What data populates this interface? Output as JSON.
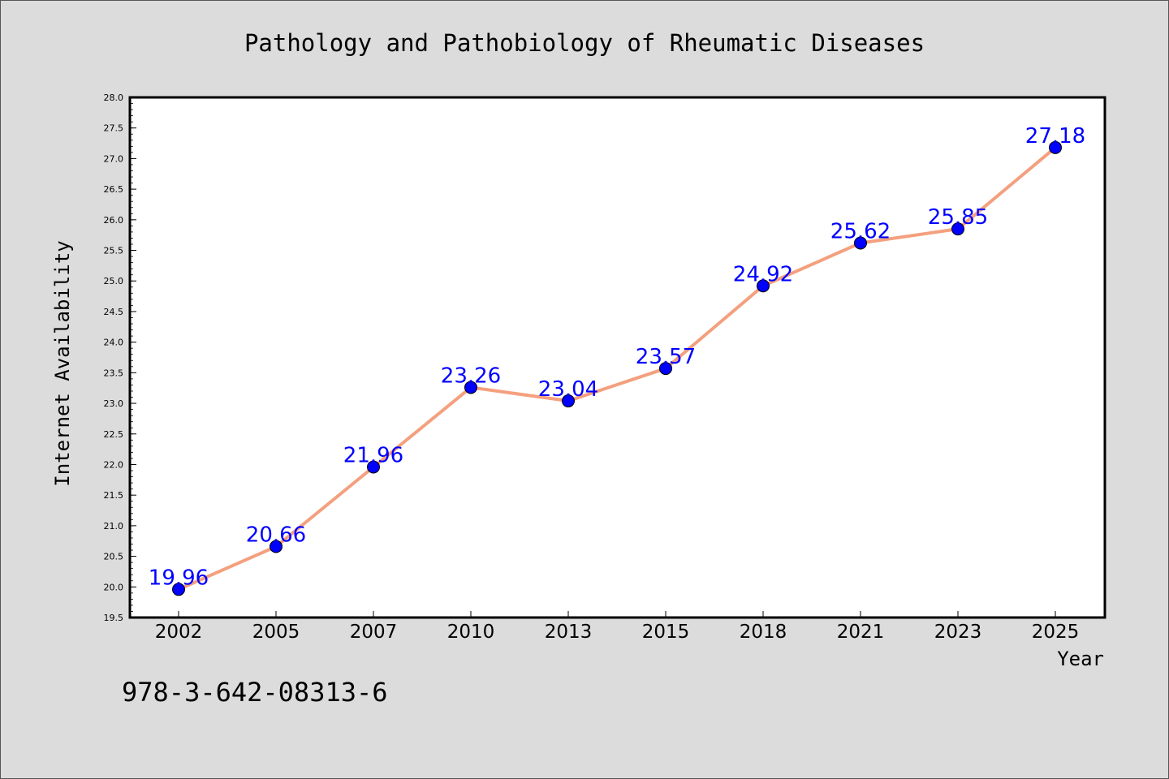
{
  "chart_data": {
    "type": "line",
    "title": "Pathology and Pathobiology of Rheumatic Diseases",
    "xlabel": "Year",
    "ylabel": "Internet Availability",
    "categories": [
      "2002",
      "2005",
      "2007",
      "2010",
      "2013",
      "2015",
      "2018",
      "2021",
      "2023",
      "2025"
    ],
    "values": [
      19.96,
      20.66,
      21.96,
      23.26,
      23.04,
      23.57,
      24.92,
      25.62,
      25.85,
      27.18
    ],
    "data_labels": [
      "19.96",
      "20.66",
      "21.96",
      "23.26",
      "23.04",
      "23.57",
      "24.92",
      "25.62",
      "25.85",
      "27.18"
    ],
    "ylim": [
      19.5,
      28.0
    ],
    "yticks": [
      "19.5",
      "20.0",
      "20.5",
      "21.0",
      "21.5",
      "22.0",
      "22.5",
      "23.0",
      "23.5",
      "24.0",
      "24.5",
      "25.0",
      "25.5",
      "26.0",
      "26.5",
      "27.0",
      "27.5",
      "28.0"
    ],
    "grid": false,
    "colors": {
      "line": "#f4a07e",
      "marker": "#0000ff",
      "data_label": "#0000ff",
      "plot_bg": "#ffffff",
      "figure_bg": "#dcdcdc"
    }
  },
  "footer": {
    "isbn": "978-3-642-08313-6"
  }
}
